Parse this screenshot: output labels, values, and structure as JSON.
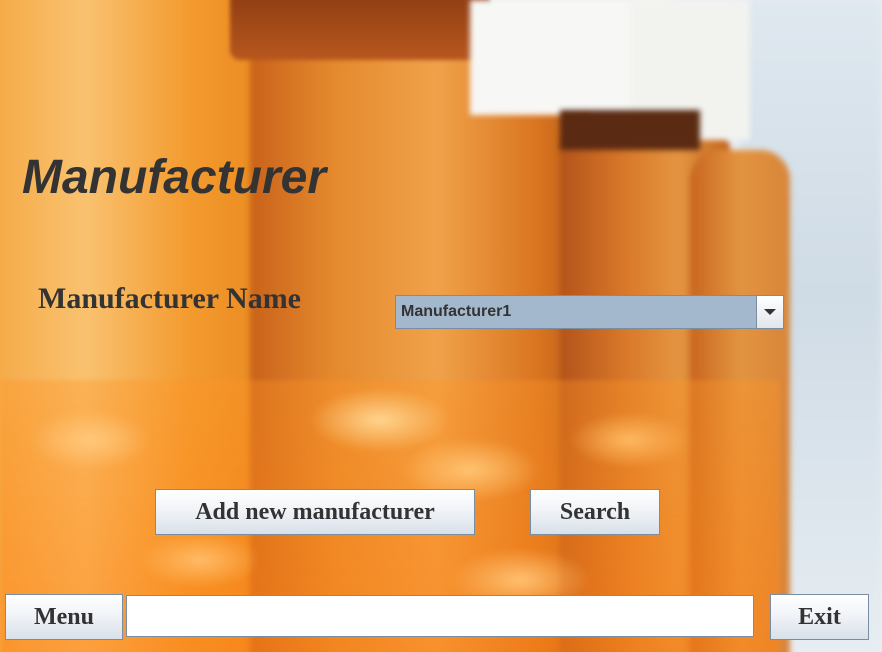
{
  "page": {
    "title": "Manufacturer"
  },
  "form": {
    "manufacturer_name_label": "Manufacturer Name",
    "manufacturer_select": {
      "selected": "Manufacturer1"
    }
  },
  "actions": {
    "add_label": "Add new manufacturer",
    "search_label": "Search"
  },
  "footer": {
    "menu_label": "Menu",
    "status_value": "",
    "exit_label": "Exit"
  },
  "colors": {
    "text": "#333333",
    "combo_bg": "#a3b8cc",
    "border": "#7a8ea3"
  },
  "icons": {
    "dropdown": "chevron-down-icon"
  }
}
